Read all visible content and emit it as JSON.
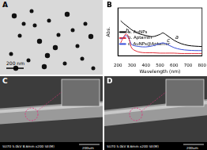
{
  "panels": [
    {
      "label": "A",
      "scale_bar": "200 nm"
    },
    {
      "label": "B"
    },
    {
      "label": "C",
      "footer": "SU70 5.0kV 8.6mm x200 SE(M)",
      "scale_bar": "200um"
    },
    {
      "label": "D",
      "footer": "SU70 5.0kV 8.6mm x200 SE(M)",
      "scale_bar": "200um"
    }
  ],
  "chart_data": {
    "type": "line",
    "x_label": "Wavelength (nm)",
    "y_label": "Abs.",
    "x": [
      220,
      240,
      260,
      280,
      300,
      350,
      400,
      450,
      500,
      520,
      540,
      600,
      650,
      700,
      750,
      800
    ],
    "series": [
      {
        "name": "a. AuNPs",
        "color": "#000000",
        "values": [
          0.95,
          0.88,
          0.82,
          0.76,
          0.7,
          0.6,
          0.55,
          0.52,
          0.58,
          0.62,
          0.58,
          0.42,
          0.33,
          0.28,
          0.26,
          0.25
        ]
      },
      {
        "name": "b. Aptamer",
        "color": "#e0303a",
        "values": [
          0.35,
          0.5,
          0.6,
          0.45,
          0.2,
          0.1,
          0.08,
          0.08,
          0.07,
          0.07,
          0.07,
          0.07,
          0.06,
          0.06,
          0.06,
          0.06
        ]
      },
      {
        "name": "c. AuNPs@Aptamer",
        "color": "#3a4fd8",
        "values": [
          0.45,
          0.5,
          0.55,
          0.45,
          0.3,
          0.25,
          0.24,
          0.27,
          0.33,
          0.35,
          0.33,
          0.22,
          0.17,
          0.15,
          0.14,
          0.14
        ]
      }
    ],
    "xlim": [
      200,
      800
    ],
    "xticks": [
      200,
      300,
      400,
      500,
      600,
      700,
      800
    ],
    "ylim": [
      0,
      1.3
    ],
    "tick_labels": "x",
    "grid": false,
    "legend": "upper right",
    "annotations": [
      {
        "text": "a",
        "x": 620,
        "y": 0.5
      },
      {
        "text": "b",
        "x": 268,
        "y": 0.66
      },
      {
        "text": "c",
        "x": 560,
        "y": 0.4
      }
    ]
  }
}
